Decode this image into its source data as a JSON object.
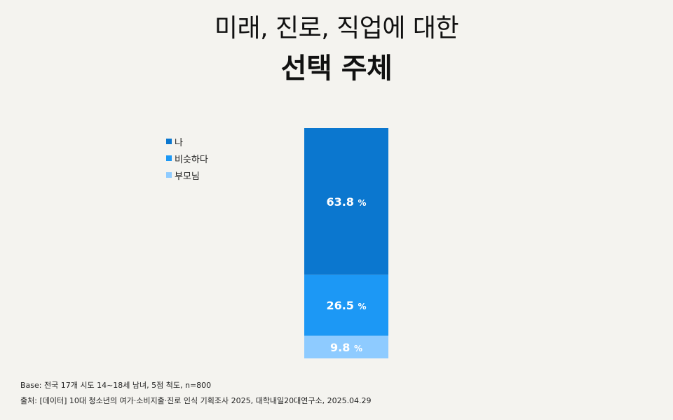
{
  "title": {
    "line1": "미래, 진로, 직업에 대한",
    "line2": "선택 주체"
  },
  "colors": {
    "background": "#f4f3ef",
    "series_1": "#0b77cf",
    "series_2": "#1c98f5",
    "series_3": "#8ecbff"
  },
  "chart_data": {
    "type": "bar",
    "stacked": true,
    "unit": "%",
    "categories": [
      ""
    ],
    "series": [
      {
        "name": "나",
        "values": [
          63.8
        ],
        "color": "#0b77cf"
      },
      {
        "name": "비슷하다",
        "values": [
          26.5
        ],
        "color": "#1c98f5"
      },
      {
        "name": "부모님",
        "values": [
          9.8
        ],
        "color": "#8ecbff"
      }
    ],
    "legend_position": "left",
    "grid": false
  },
  "footer": {
    "base": "Base: 전국 17개 시도 14~18세 남녀, 5점 척도, n=800",
    "source": "출처: [데이터] 10대 청소년의 여가·소비지출·진로 인식 기획조사 2025, 대학내일20대연구소, 2025.04.29"
  }
}
